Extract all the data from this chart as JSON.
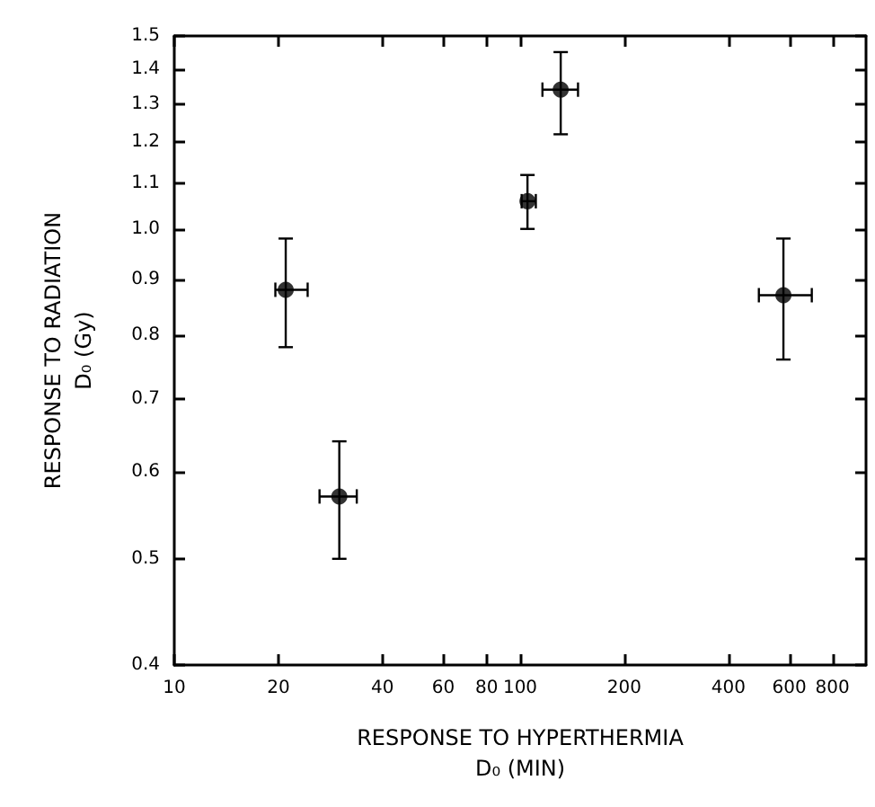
{
  "chart_data": {
    "type": "scatter",
    "xlabel": "RESPONSE TO HYPERTHERMIA\nD₀ (MIN)",
    "ylabel": "RESPONSE TO RADIATION\nD₀ (Gy)",
    "log": "xy",
    "grid": false,
    "marker": "circle",
    "xlim": [
      10,
      1000
    ],
    "ylim": [
      0.4,
      1.5
    ],
    "xticks": [
      10,
      20,
      40,
      60,
      80,
      100,
      200,
      400,
      600,
      800
    ],
    "yticks": [
      0.4,
      0.5,
      0.6,
      0.7,
      0.8,
      0.9,
      {
        "value": 1,
        "label": "1.0"
      },
      1.1,
      1.2,
      1.3,
      1.4,
      1.5
    ],
    "series": [
      {
        "color": "#000000",
        "x": [
          21,
          30,
          105,
          131,
          577
        ],
        "values": [
          0.88,
          0.57,
          1.06,
          1.34,
          0.87
        ],
        "errors": [
          [
            0.78,
            0.98
          ],
          [
            0.5,
            0.64
          ],
          [
            1.0,
            1.12
          ],
          [
            1.22,
            1.45
          ],
          [
            0.76,
            0.98
          ]
        ],
        "xerrors": [
          [
            19.6,
            24.3
          ],
          [
            26.3,
            33.7
          ],
          [
            101,
            111
          ],
          [
            116,
            147
          ],
          [
            490,
            697
          ]
        ]
      }
    ]
  }
}
